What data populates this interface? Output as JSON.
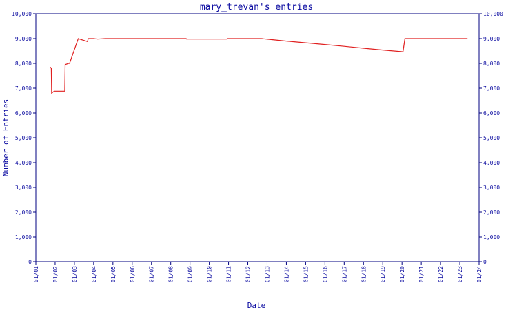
{
  "chart_data": {
    "type": "line",
    "title": "mary_trevan's entries",
    "xlabel": "Date",
    "ylabel": "Number of Entries",
    "ylim": [
      0,
      10000
    ],
    "y_ticks": [
      0,
      1000,
      2000,
      3000,
      4000,
      5000,
      6000,
      7000,
      8000,
      9000,
      10000
    ],
    "y_tick_labels": [
      "0",
      "1,000",
      "2,000",
      "3,000",
      "4,000",
      "5,000",
      "6,000",
      "7,000",
      "8,000",
      "9,000",
      "10,000"
    ],
    "x_ticks": [
      "01/01",
      "01/02",
      "01/03",
      "01/04",
      "01/05",
      "01/06",
      "01/07",
      "01/08",
      "01/09",
      "01/10",
      "01/11",
      "01/12",
      "01/13",
      "01/14",
      "01/15",
      "01/16",
      "01/17",
      "01/18",
      "01/19",
      "01/20",
      "01/21",
      "01/22",
      "01/23",
      "01/24"
    ],
    "grid": false,
    "colors": {
      "series": "#e02020",
      "axes": "#000080",
      "text": "#0a0aa0"
    },
    "series": [
      {
        "x": [
          1.75,
          1.8,
          1.82,
          1.95,
          2.0,
          2.5,
          2.52,
          2.7,
          2.75,
          3.2,
          3.6,
          3.68,
          3.72,
          4.0,
          4.2,
          4.6,
          5.0,
          6.0,
          7.0,
          8.0,
          8.8,
          8.82,
          9.5,
          10.9,
          10.95,
          12.7,
          13.2,
          14.0,
          15.0,
          16.0,
          17.0,
          18.0,
          19.0,
          20.05,
          20.15,
          21.0,
          22.0,
          23.0,
          23.4
        ],
        "y": [
          7850,
          7800,
          6800,
          6880,
          6880,
          6880,
          7950,
          8000,
          8000,
          9000,
          8900,
          8880,
          9000,
          9000,
          8980,
          9000,
          9000,
          9000,
          9000,
          9000,
          9000,
          8980,
          8980,
          8980,
          9000,
          9000,
          8960,
          8900,
          8830,
          8760,
          8690,
          8610,
          8540,
          8470,
          9000,
          9000,
          9000,
          9000,
          9000
        ]
      }
    ]
  }
}
